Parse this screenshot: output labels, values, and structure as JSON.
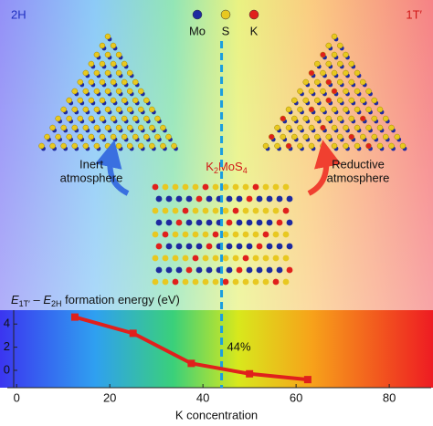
{
  "chart_data": {
    "type": "line",
    "x": [
      12.5,
      25,
      37.5,
      50,
      62.5
    ],
    "series": [
      {
        "name": "formation energy",
        "color": "#e0201c",
        "values": [
          4.6,
          3.2,
          0.6,
          -0.3,
          -0.8
        ]
      }
    ],
    "xlim": [
      -2,
      89
    ],
    "xticks": [
      0,
      20,
      40,
      60,
      80
    ],
    "ylim": [
      -1.5,
      5.2
    ],
    "yticks": [
      0,
      2,
      4
    ],
    "xlabel": "K concentration",
    "ylabel": [
      "E",
      "1T′",
      " – ",
      "E",
      "2H",
      " formation energy (eV)"
    ],
    "threshold_x": 44,
    "threshold_label": "44%"
  },
  "figure": {
    "phase_left": "2H",
    "phase_right": "1T′",
    "legend": [
      "Mo",
      "S",
      "K"
    ],
    "left_caption": [
      "Inert",
      "atmosphere"
    ],
    "right_caption": [
      "Reductive",
      "atmosphere"
    ],
    "compound": [
      "K",
      "2",
      "MoS",
      "4"
    ]
  }
}
